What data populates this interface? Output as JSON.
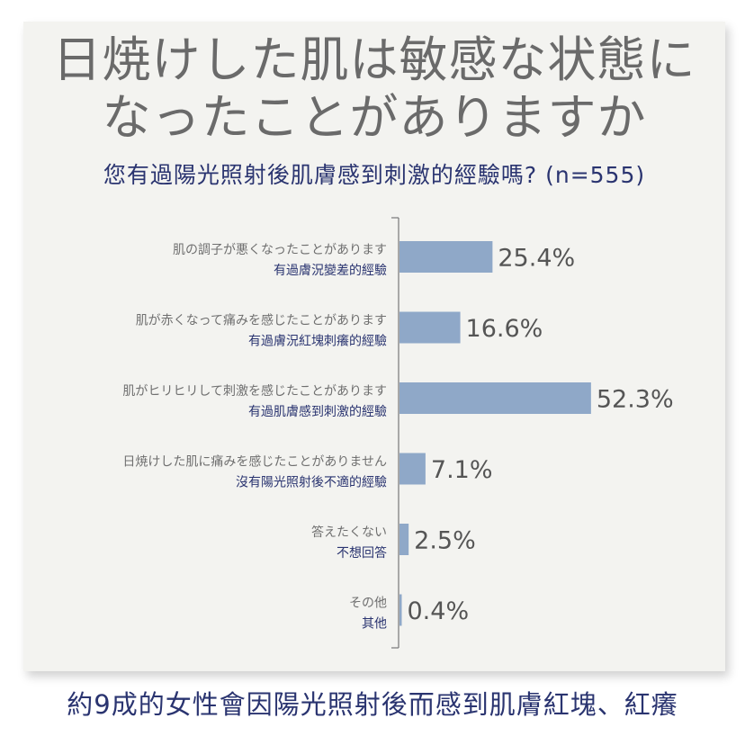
{
  "title_line1": "日焼けした肌は敏感な状態に",
  "title_line2": "なったことがありますか",
  "subtitle": "您有過陽光照射後肌膚感到刺激的經驗嗎? (n=555)",
  "footer": "約9成的女性會因陽光照射後而感到肌膚紅塊、紅癢",
  "colors": {
    "bar": "#8fa8c8",
    "axis": "#777777",
    "zh_text": "#2a3470",
    "jp_text": "#6f6f6f"
  },
  "chart_data": {
    "type": "bar",
    "orientation": "horizontal",
    "unit": "%",
    "categories": [
      {
        "jp": "肌の調子が悪くなったことがあります",
        "zh": "有過膚況變差的經驗"
      },
      {
        "jp": "肌が赤くなって痛みを感じたことがあります",
        "zh": "有過膚況紅塊刺癢的經驗"
      },
      {
        "jp": "肌がヒリヒリして刺激を感じたことがあります",
        "zh": "有過肌膚感到刺激的經驗"
      },
      {
        "jp": "日焼けした肌に痛みを感じたことがありません",
        "zh": "沒有陽光照射後不適的經驗"
      },
      {
        "jp": "答えたくない",
        "zh": "不想回答"
      },
      {
        "jp": "その他",
        "zh": "其他"
      }
    ],
    "values": [
      25.4,
      16.6,
      52.3,
      7.1,
      2.5,
      0.4
    ],
    "value_labels": [
      "25.4%",
      "16.6%",
      "52.3%",
      "7.1%",
      "2.5%",
      "0.4%"
    ]
  }
}
